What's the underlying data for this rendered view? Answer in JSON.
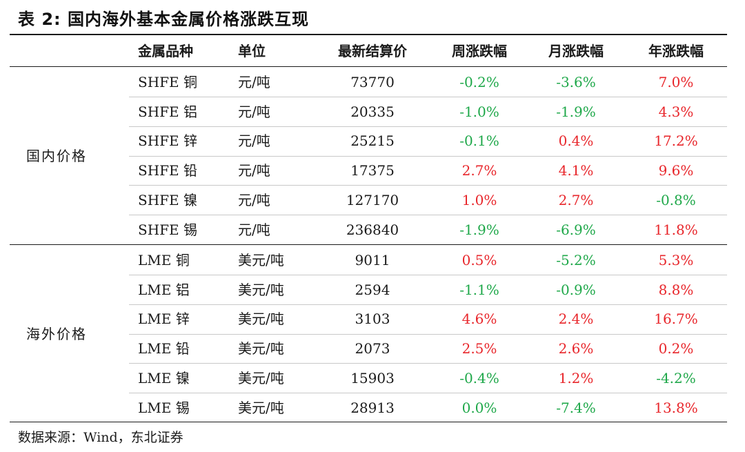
{
  "title": "表 2:  国内海外基本金属价格涨跌互现",
  "colors": {
    "up": "#e8262b",
    "down": "#1fa84a",
    "text": "#1a1a1a"
  },
  "headers": {
    "metal": "金属品种",
    "unit": "单位",
    "price": "最新结算价",
    "week": "周涨跌幅",
    "month": "月涨跌幅",
    "year": "年涨跌幅"
  },
  "groups": [
    {
      "label": "国内价格",
      "rows": [
        {
          "metal": "SHFE 铜",
          "unit": "元/吨",
          "price": "73770",
          "week": "-0.2%",
          "month": "-3.6%",
          "year": "7.0%"
        },
        {
          "metal": "SHFE 铝",
          "unit": "元/吨",
          "price": "20335",
          "week": "-1.0%",
          "month": "-1.9%",
          "year": "4.3%"
        },
        {
          "metal": "SHFE 锌",
          "unit": "元/吨",
          "price": "25215",
          "week": "-0.1%",
          "month": "0.4%",
          "year": "17.2%"
        },
        {
          "metal": "SHFE 铅",
          "unit": "元/吨",
          "price": "17375",
          "week": "2.7%",
          "month": "4.1%",
          "year": "9.6%"
        },
        {
          "metal": "SHFE 镍",
          "unit": "元/吨",
          "price": "127170",
          "week": "1.0%",
          "month": "2.7%",
          "year": "-0.8%"
        },
        {
          "metal": "SHFE 锡",
          "unit": "元/吨",
          "price": "236840",
          "week": "-1.9%",
          "month": "-6.9%",
          "year": "11.8%"
        }
      ]
    },
    {
      "label": "海外价格",
      "rows": [
        {
          "metal": "LME 铜",
          "unit": "美元/吨",
          "price": "9011",
          "week": "0.5%",
          "month": "-5.2%",
          "year": "5.3%"
        },
        {
          "metal": "LME 铝",
          "unit": "美元/吨",
          "price": "2594",
          "week": "-1.1%",
          "month": "-0.9%",
          "year": "8.8%"
        },
        {
          "metal": "LME 锌",
          "unit": "美元/吨",
          "price": "3103",
          "week": "4.6%",
          "month": "2.4%",
          "year": "16.7%"
        },
        {
          "metal": "LME 铅",
          "unit": "美元/吨",
          "price": "2073",
          "week": "2.5%",
          "month": "2.6%",
          "year": "0.2%"
        },
        {
          "metal": "LME 镍",
          "unit": "美元/吨",
          "price": "15903",
          "week": "-0.4%",
          "month": "1.2%",
          "year": "-4.2%"
        },
        {
          "metal": "LME 锡",
          "unit": "美元/吨",
          "price": "28913",
          "week": "0.0%",
          "month": "-7.4%",
          "year": "13.8%"
        }
      ]
    }
  ],
  "source": "数据来源：Wind，东北证券"
}
